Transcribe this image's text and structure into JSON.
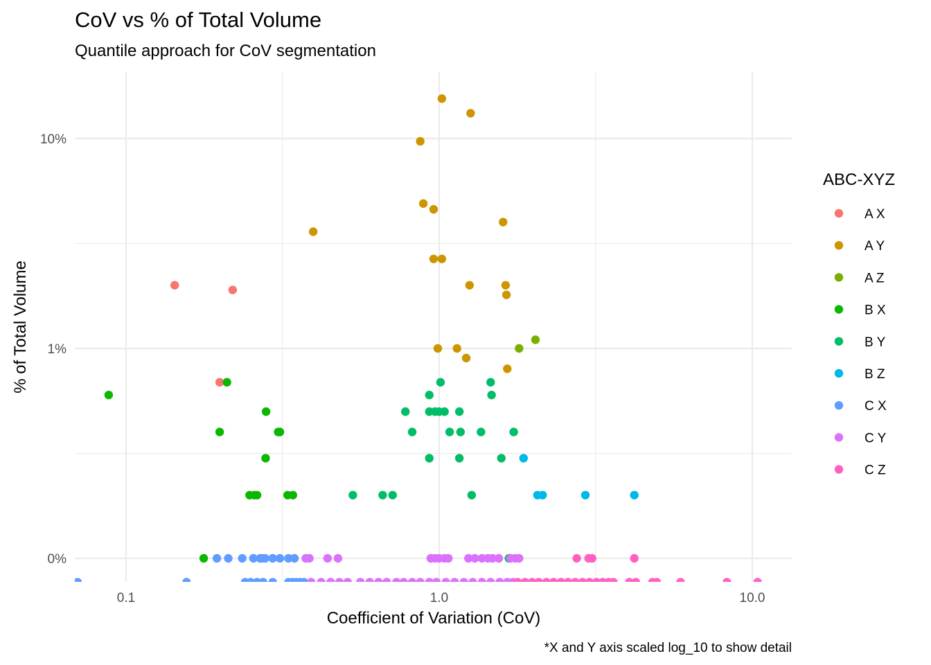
{
  "chart_data": {
    "type": "scatter",
    "title": "CoV vs % of Total Volume",
    "subtitle": "Quantile approach for CoV segmentation",
    "xlabel": "Coefficient of Variation (CoV)",
    "ylabel": "% of Total Volume",
    "caption": "*X and Y axis scaled log_10 to show detail",
    "x_scale": "log10",
    "y_scale": "log10",
    "xlim": [
      0.07,
      12.0
    ],
    "ylim": [
      0.078,
      18.0
    ],
    "x_ticks": [
      {
        "value": 0.1,
        "label": "0.1"
      },
      {
        "value": 1.0,
        "label": "1.0"
      },
      {
        "value": 10.0,
        "label": "10.0"
      }
    ],
    "x_minor": [
      0.316,
      3.16
    ],
    "y_ticks": [
      {
        "value": 0.1,
        "label": "0%"
      },
      {
        "value": 1.0,
        "label": "1%"
      },
      {
        "value": 10.0,
        "label": "10%"
      }
    ],
    "y_minor": [
      0.316,
      3.16
    ],
    "grid": true,
    "legend": {
      "title": "ABC-XYZ",
      "position": "right"
    },
    "series": [
      {
        "name": "A X",
        "color": "#F8766D",
        "points": [
          [
            0.143,
            2.0
          ],
          [
            0.219,
            1.9
          ],
          [
            0.199,
            0.69
          ]
        ]
      },
      {
        "name": "A Y",
        "color": "#CD9600",
        "points": [
          [
            1.02,
            15.5
          ],
          [
            1.26,
            13.2
          ],
          [
            0.87,
            9.7
          ],
          [
            0.89,
            4.9
          ],
          [
            0.96,
            4.6
          ],
          [
            1.6,
            4.0
          ],
          [
            0.396,
            3.6
          ],
          [
            0.96,
            2.67
          ],
          [
            1.02,
            2.67
          ],
          [
            1.25,
            2.0
          ],
          [
            1.63,
            2.0
          ],
          [
            1.64,
            1.8
          ],
          [
            0.99,
            1.0
          ],
          [
            1.14,
            1.0
          ],
          [
            1.22,
            0.9
          ],
          [
            1.65,
            0.8
          ]
        ]
      },
      {
        "name": "A Z",
        "color": "#7CAE00",
        "points": [
          [
            1.8,
            1.0
          ],
          [
            2.03,
            1.1
          ]
        ]
      },
      {
        "name": "B X",
        "color": "#0CB702",
        "points": [
          [
            0.088,
            0.6
          ],
          [
            0.21,
            0.69
          ],
          [
            0.199,
            0.4
          ],
          [
            0.28,
            0.5
          ],
          [
            0.31,
            0.4
          ],
          [
            0.306,
            0.4
          ],
          [
            0.279,
            0.3
          ],
          [
            0.248,
            0.2
          ],
          [
            0.257,
            0.2
          ],
          [
            0.262,
            0.2
          ],
          [
            0.328,
            0.2
          ],
          [
            0.341,
            0.2
          ],
          [
            0.177,
            0.1
          ]
        ]
      },
      {
        "name": "B Y",
        "color": "#00BE67",
        "points": [
          [
            1.01,
            0.69
          ],
          [
            1.46,
            0.69
          ],
          [
            0.93,
            0.6
          ],
          [
            1.47,
            0.6
          ],
          [
            0.78,
            0.5
          ],
          [
            0.93,
            0.5
          ],
          [
            0.97,
            0.5
          ],
          [
            1.0,
            0.5
          ],
          [
            1.04,
            0.5
          ],
          [
            1.16,
            0.5
          ],
          [
            0.82,
            0.4
          ],
          [
            1.08,
            0.4
          ],
          [
            1.17,
            0.4
          ],
          [
            1.36,
            0.4
          ],
          [
            1.73,
            0.4
          ],
          [
            0.93,
            0.3
          ],
          [
            1.16,
            0.3
          ],
          [
            1.58,
            0.3
          ],
          [
            0.53,
            0.2
          ],
          [
            0.66,
            0.2
          ],
          [
            0.71,
            0.2
          ],
          [
            1.27,
            0.2
          ],
          [
            1.67,
            0.1
          ]
        ]
      },
      {
        "name": "B Z",
        "color": "#00C19A",
        "points": []
      },
      {
        "name": "B Z",
        "color": "#00B8E7",
        "points": [
          [
            1.86,
            0.3
          ],
          [
            2.06,
            0.2
          ],
          [
            2.14,
            0.2
          ],
          [
            2.93,
            0.2
          ],
          [
            4.2,
            0.2
          ]
        ]
      },
      {
        "name": "C X",
        "color": "#619CFF",
        "points": [
          [
            0.07,
            0.077
          ],
          [
            0.156,
            0.077
          ],
          [
            0.195,
            0.1
          ],
          [
            0.212,
            0.1
          ],
          [
            0.235,
            0.1
          ],
          [
            0.255,
            0.1
          ],
          [
            0.268,
            0.1
          ],
          [
            0.272,
            0.1
          ],
          [
            0.278,
            0.1
          ],
          [
            0.294,
            0.1
          ],
          [
            0.31,
            0.1
          ],
          [
            0.33,
            0.1
          ],
          [
            0.345,
            0.1
          ],
          [
            0.24,
            0.077
          ],
          [
            0.25,
            0.077
          ],
          [
            0.262,
            0.077
          ],
          [
            0.274,
            0.077
          ],
          [
            0.294,
            0.077
          ],
          [
            0.33,
            0.077
          ],
          [
            0.34,
            0.077
          ],
          [
            0.35,
            0.077
          ],
          [
            0.36,
            0.077
          ],
          [
            0.37,
            0.077
          ]
        ]
      },
      {
        "name": "C Y",
        "color": "#DB72FB",
        "points": [
          [
            0.375,
            0.1
          ],
          [
            0.385,
            0.1
          ],
          [
            0.44,
            0.1
          ],
          [
            0.475,
            0.1
          ],
          [
            0.94,
            0.1
          ],
          [
            0.97,
            0.1
          ],
          [
            1.0,
            0.1
          ],
          [
            1.04,
            0.1
          ],
          [
            1.07,
            0.1
          ],
          [
            1.24,
            0.1
          ],
          [
            1.3,
            0.1
          ],
          [
            1.37,
            0.1
          ],
          [
            1.43,
            0.1
          ],
          [
            1.48,
            0.1
          ],
          [
            1.55,
            0.1
          ],
          [
            1.69,
            0.1
          ],
          [
            1.75,
            0.1
          ],
          [
            1.8,
            0.1
          ],
          [
            0.39,
            0.077
          ],
          [
            0.42,
            0.077
          ],
          [
            0.45,
            0.077
          ],
          [
            0.48,
            0.077
          ],
          [
            0.51,
            0.077
          ],
          [
            0.56,
            0.077
          ],
          [
            0.6,
            0.077
          ],
          [
            0.64,
            0.077
          ],
          [
            0.68,
            0.077
          ],
          [
            0.73,
            0.077
          ],
          [
            0.77,
            0.077
          ],
          [
            0.82,
            0.077
          ],
          [
            0.87,
            0.077
          ],
          [
            0.93,
            0.077
          ],
          [
            0.98,
            0.077
          ],
          [
            1.05,
            0.077
          ],
          [
            1.12,
            0.077
          ],
          [
            1.2,
            0.077
          ],
          [
            1.28,
            0.077
          ],
          [
            1.37,
            0.077
          ],
          [
            1.46,
            0.077
          ],
          [
            1.56,
            0.077
          ],
          [
            1.65,
            0.077
          ],
          [
            1.72,
            0.077
          ]
        ]
      },
      {
        "name": "C Z",
        "color": "#FF61C3",
        "points": [
          [
            2.75,
            0.1
          ],
          [
            3.0,
            0.1
          ],
          [
            3.08,
            0.1
          ],
          [
            4.2,
            0.1
          ],
          [
            1.78,
            0.077
          ],
          [
            1.88,
            0.077
          ],
          [
            1.98,
            0.077
          ],
          [
            2.08,
            0.077
          ],
          [
            2.2,
            0.077
          ],
          [
            2.32,
            0.077
          ],
          [
            2.45,
            0.077
          ],
          [
            2.58,
            0.077
          ],
          [
            2.72,
            0.077
          ],
          [
            2.87,
            0.077
          ],
          [
            3.02,
            0.077
          ],
          [
            3.18,
            0.077
          ],
          [
            3.33,
            0.077
          ],
          [
            3.48,
            0.077
          ],
          [
            3.6,
            0.077
          ],
          [
            4.05,
            0.077
          ],
          [
            4.25,
            0.077
          ],
          [
            4.8,
            0.077
          ],
          [
            4.95,
            0.077
          ],
          [
            5.9,
            0.077
          ],
          [
            8.3,
            0.077
          ],
          [
            10.4,
            0.077
          ]
        ]
      }
    ]
  }
}
